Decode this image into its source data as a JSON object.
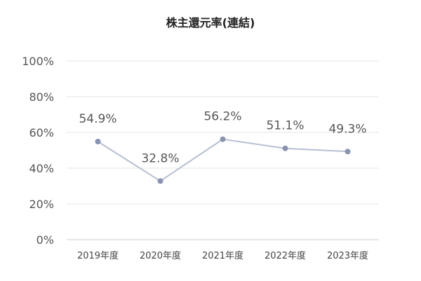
{
  "chart_data": {
    "type": "line",
    "title": "株主還元率(連結)",
    "categories": [
      "2019年度",
      "2020年度",
      "2021年度",
      "2022年度",
      "2023年度"
    ],
    "series": [
      {
        "values": [
          54.9,
          32.8,
          56.2,
          51.1,
          49.3
        ],
        "labels": [
          "54.9%",
          "32.8%",
          "56.2%",
          "51.1%",
          "49.3%"
        ],
        "color": "#8a94b0",
        "line_color": "#b8bfd3"
      }
    ],
    "ylim": [
      0,
      100
    ],
    "yticks": [
      {
        "value": 0,
        "label": "0%"
      },
      {
        "value": 20,
        "label": "20%"
      },
      {
        "value": 40,
        "label": "40%"
      },
      {
        "value": 60,
        "label": "60%"
      },
      {
        "value": 80,
        "label": "80%"
      },
      {
        "value": 100,
        "label": "100%"
      }
    ],
    "grid": true,
    "legend": "none"
  }
}
